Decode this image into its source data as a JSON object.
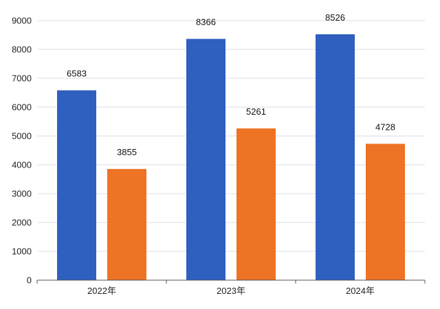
{
  "chart_data": {
    "type": "bar",
    "categories": [
      "2022年",
      "2023年",
      "2024年"
    ],
    "series": [
      {
        "values": [
          6583,
          8366,
          8526
        ],
        "color": "#2f5fbf"
      },
      {
        "values": [
          3855,
          5261,
          4728
        ],
        "color": "#ee7324"
      }
    ],
    "ylim": [
      0,
      9000
    ],
    "yticks": [
      0,
      1000,
      2000,
      3000,
      4000,
      5000,
      6000,
      7000,
      8000,
      9000
    ],
    "grid": true,
    "legend": "none",
    "title": "",
    "xlabel": "",
    "ylabel": ""
  }
}
